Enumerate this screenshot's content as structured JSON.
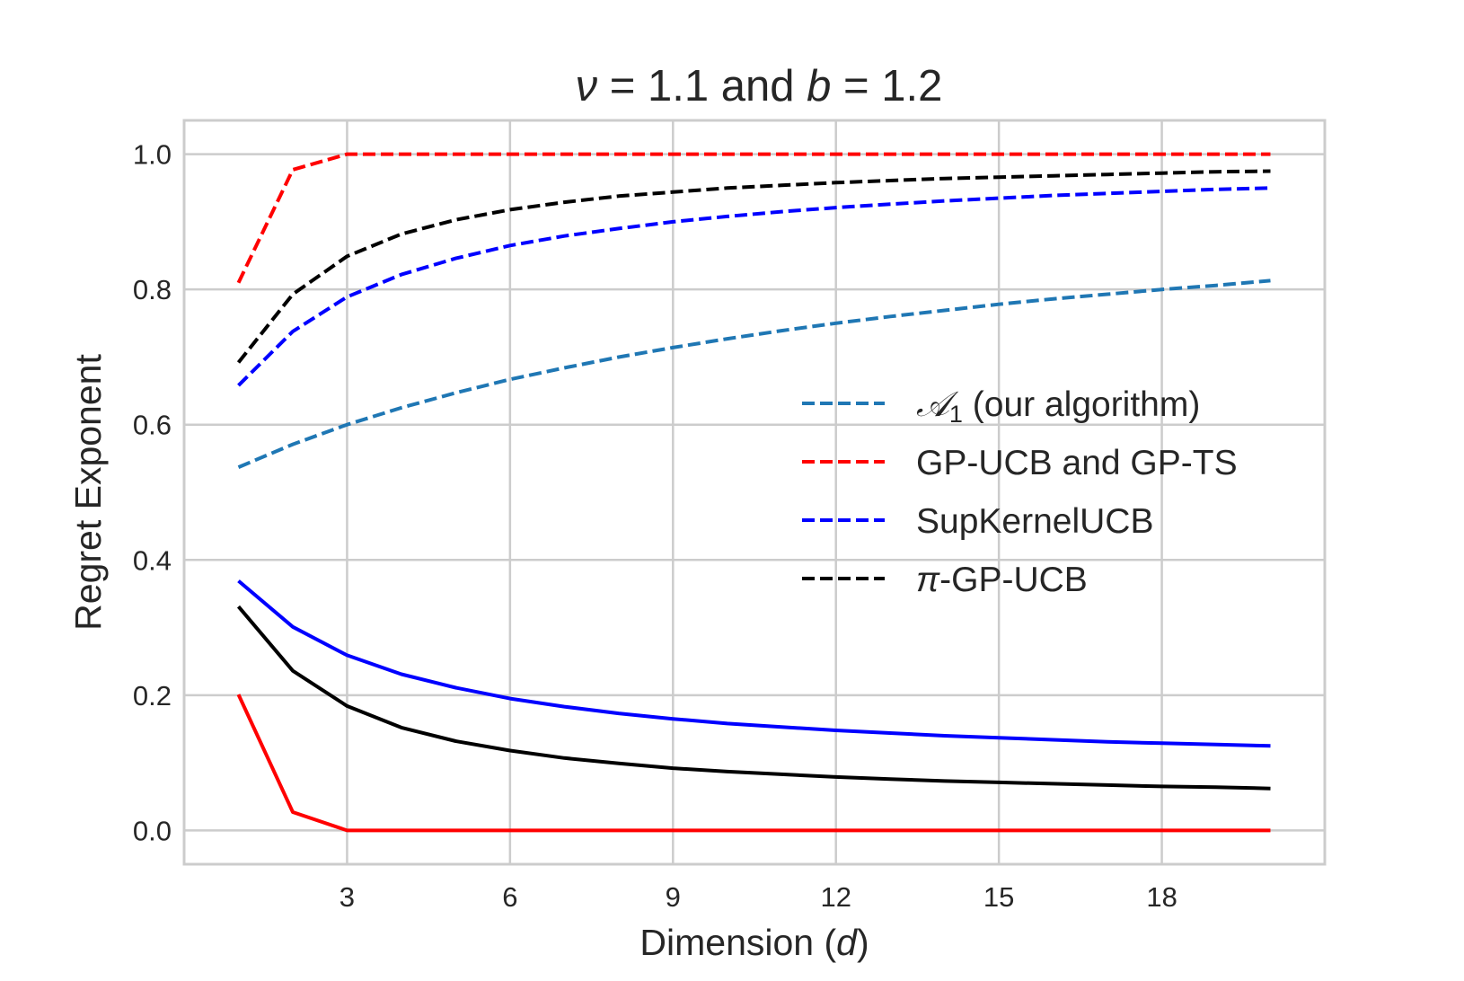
{
  "chart_data": {
    "type": "line",
    "title": "ν = 1.1 and b = 1.2",
    "title_parts": {
      "nu_symbol": "ν",
      "nu_expr": " = 1.1 and ",
      "b_symbol": "b",
      "b_expr": " = 1.2"
    },
    "xlabel": "Dimension (d)",
    "xlabel_parts": {
      "text": "Dimension (",
      "var": "d",
      "close": ")"
    },
    "ylabel": "Regret Exponent",
    "xlim": [
      0,
      21
    ],
    "ylim": [
      -0.05,
      1.05
    ],
    "xticks": [
      3,
      6,
      9,
      12,
      15,
      18
    ],
    "yticks": [
      0.0,
      0.2,
      0.4,
      0.6,
      0.8,
      1.0
    ],
    "ytick_labels": [
      "0.0",
      "0.2",
      "0.4",
      "0.6",
      "0.8",
      "1.0"
    ],
    "grid": true,
    "legend_placement": "center-right",
    "x": [
      1,
      2,
      3,
      4,
      5,
      6,
      7,
      8,
      9,
      10,
      11,
      12,
      13,
      14,
      15,
      16,
      17,
      18,
      19,
      20
    ],
    "series": [
      {
        "name": "A1 (our algorithm)",
        "legend": {
          "symbol": "𝒜",
          "sub": "1",
          "rest": " (our algorithm)"
        },
        "color": "#1f77b4",
        "style": "dashed",
        "in_legend": true,
        "values": [
          0.537,
          0.571,
          0.6,
          0.625,
          0.647,
          0.667,
          0.684,
          0.7,
          0.714,
          0.727,
          0.739,
          0.75,
          0.76,
          0.769,
          0.778,
          0.786,
          0.793,
          0.8,
          0.806,
          0.813
        ]
      },
      {
        "name": "GP-UCB and GP-TS",
        "legend": {
          "text": "GP-UCB and GP-TS"
        },
        "color": "#ff0000",
        "style": "dashed",
        "in_legend": true,
        "values": [
          0.81,
          0.977,
          1.0,
          1.0,
          1.0,
          1.0,
          1.0,
          1.0,
          1.0,
          1.0,
          1.0,
          1.0,
          1.0,
          1.0,
          1.0,
          1.0,
          1.0,
          1.0,
          1.0,
          1.0
        ]
      },
      {
        "name": "SupKernelUCB",
        "legend": {
          "text": "SupKernelUCB"
        },
        "color": "#0000ff",
        "style": "dashed",
        "in_legend": true,
        "values": [
          0.658,
          0.738,
          0.789,
          0.822,
          0.846,
          0.865,
          0.879,
          0.89,
          0.9,
          0.908,
          0.915,
          0.921,
          0.926,
          0.931,
          0.935,
          0.939,
          0.942,
          0.945,
          0.948,
          0.95
        ]
      },
      {
        "name": "π-GP-UCB",
        "legend": {
          "symbol": "π",
          "rest": "-GP-UCB"
        },
        "color": "#000000",
        "style": "dashed",
        "in_legend": true,
        "values": [
          0.692,
          0.793,
          0.849,
          0.882,
          0.903,
          0.918,
          0.929,
          0.938,
          0.944,
          0.95,
          0.954,
          0.958,
          0.961,
          0.964,
          0.966,
          0.968,
          0.97,
          0.972,
          0.974,
          0.975
        ]
      },
      {
        "color": "#ff0000",
        "style": "solid",
        "in_legend": false,
        "values": [
          0.201,
          0.027,
          0.0,
          0.0,
          0.0,
          0.0,
          0.0,
          0.0,
          0.0,
          0.0,
          0.0,
          0.0,
          0.0,
          0.0,
          0.0,
          0.0,
          0.0,
          0.0,
          0.0,
          0.0
        ]
      },
      {
        "color": "#0000ff",
        "style": "solid",
        "in_legend": false,
        "values": [
          0.369,
          0.301,
          0.259,
          0.231,
          0.211,
          0.195,
          0.183,
          0.173,
          0.165,
          0.158,
          0.153,
          0.148,
          0.144,
          0.14,
          0.137,
          0.134,
          0.131,
          0.129,
          0.127,
          0.125
        ]
      },
      {
        "color": "#000000",
        "style": "solid",
        "in_legend": false,
        "values": [
          0.331,
          0.236,
          0.184,
          0.152,
          0.132,
          0.118,
          0.107,
          0.099,
          0.092,
          0.087,
          0.083,
          0.079,
          0.076,
          0.073,
          0.071,
          0.069,
          0.067,
          0.065,
          0.064,
          0.062
        ]
      }
    ]
  }
}
